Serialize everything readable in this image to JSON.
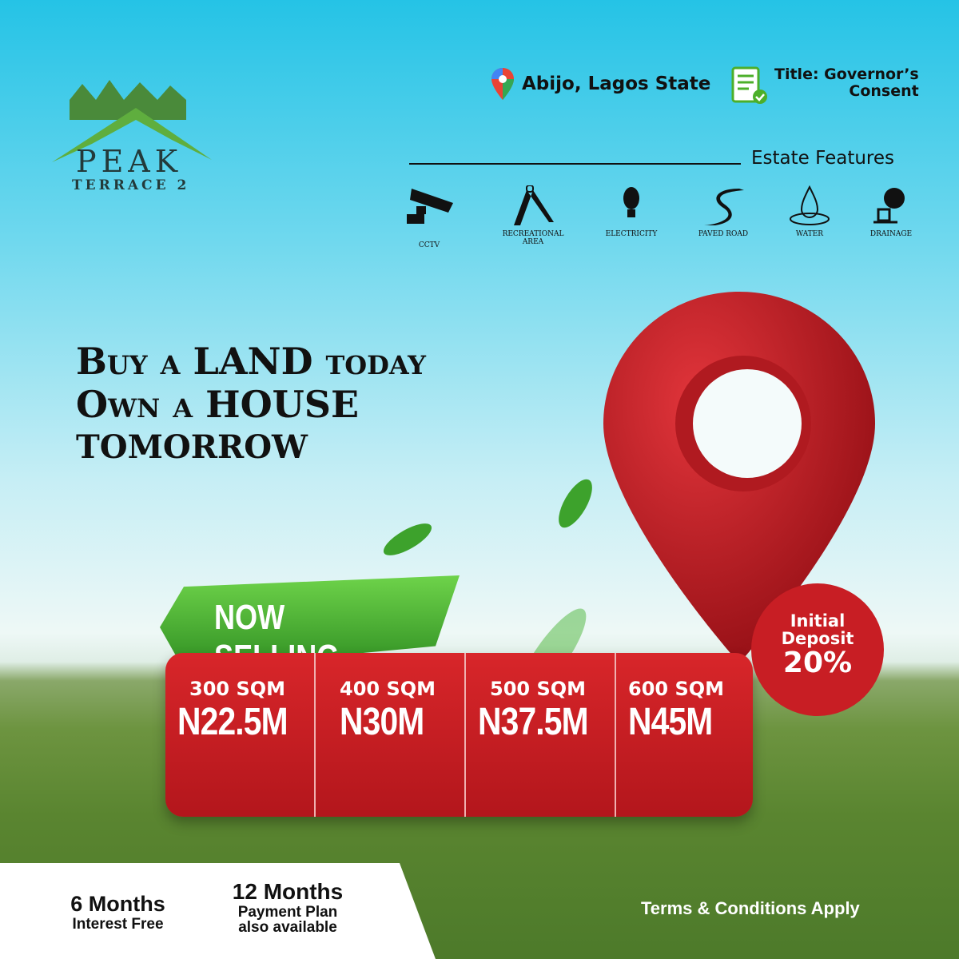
{
  "logo": {
    "name": "PEAK",
    "subtitle": "TERRACE 2"
  },
  "location": {
    "icon": "map-pin-icon",
    "text": "Abijo, Lagos State"
  },
  "title_doc": {
    "icon": "document-check-icon",
    "line1": "Title: Governor’s",
    "line2": "Consent"
  },
  "features": {
    "heading": "Estate Features",
    "items": [
      {
        "icon": "cctv-camera-icon",
        "label": "CCTV"
      },
      {
        "icon": "playground-slide-icon",
        "label": "Recreational area"
      },
      {
        "icon": "light-bulb-icon",
        "label": "Electricity"
      },
      {
        "icon": "road-icon",
        "label": "Paved road"
      },
      {
        "icon": "water-drop-icon",
        "label": "Water"
      },
      {
        "icon": "drainage-icon",
        "label": "Drainage"
      }
    ]
  },
  "headline": {
    "line1": "Buy a LAND today",
    "line2": "Own a HOUSE",
    "line3": "tomorrow"
  },
  "banner": "NOW SELLING",
  "prices": [
    {
      "size": "300 SQM",
      "price": "N22.5M"
    },
    {
      "size": "400 SQM",
      "price": "N30M"
    },
    {
      "size": "500 SQM",
      "price": "N37.5M"
    },
    {
      "size": "600 SQM",
      "price": "N45M"
    }
  ],
  "deposit": {
    "line1": "Initial",
    "line2": "Deposit",
    "value": "20%"
  },
  "payment": {
    "a_title": "6 Months",
    "a_sub": "Interest Free",
    "b_title": "12 Months",
    "b_sub1": "Payment Plan",
    "b_sub2": "also available"
  },
  "terms": "Terms & Conditions Apply",
  "colors": {
    "red": "#c81e24",
    "green": "#4caf2a",
    "sky": "#25c3e6"
  }
}
